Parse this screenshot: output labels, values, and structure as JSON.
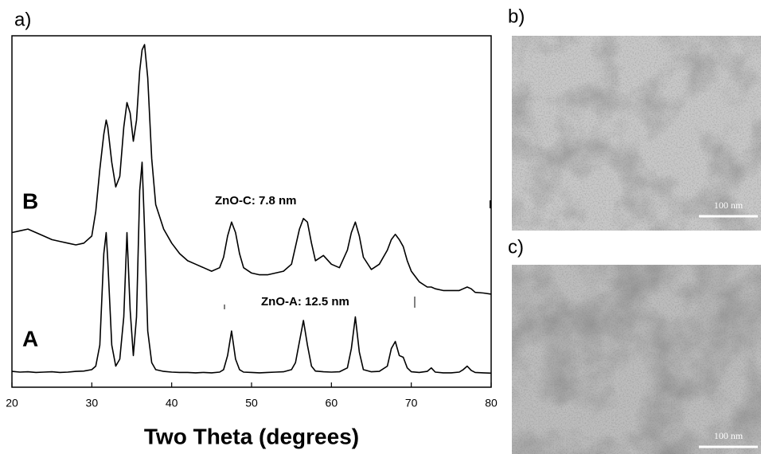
{
  "chart_data": {
    "type": "line",
    "panel_label": "a)",
    "xlabel": "Two Theta (degrees)",
    "x": [
      20,
      21,
      22,
      23,
      24,
      25,
      26,
      27,
      28,
      29,
      30,
      30.5,
      31,
      31.5,
      31.8,
      32,
      32.5,
      33,
      33.5,
      34,
      34.4,
      34.8,
      35.2,
      35.6,
      36,
      36.3,
      36.6,
      37,
      37.5,
      38,
      39,
      40,
      41,
      42,
      43,
      44,
      45,
      46,
      46.5,
      47,
      47.5,
      48,
      48.5,
      49,
      50,
      51,
      52,
      53,
      54,
      55,
      55.5,
      56,
      56.5,
      57,
      57.5,
      58,
      59,
      60,
      61,
      62,
      62.5,
      63,
      63.5,
      64,
      65,
      66,
      67,
      67.5,
      68,
      68.5,
      69,
      69.5,
      70,
      71,
      72,
      72.5,
      73,
      74,
      75,
      76,
      76.5,
      77,
      77.5,
      78,
      79,
      80
    ],
    "series": [
      {
        "name": "B",
        "color": "#000000",
        "annotation": "ZnO-C: 7.8 nm",
        "values": [
          44,
          44.5,
          45,
          44,
          43,
          42,
          41.5,
          41,
          40.5,
          41,
          43,
          50,
          62,
          72,
          76,
          74,
          64,
          57,
          60,
          74,
          81,
          78,
          70,
          76,
          90,
          96,
          97.5,
          88,
          65,
          52,
          45,
          41,
          38,
          36,
          35,
          34,
          33,
          34,
          37,
          43,
          47,
          44,
          38,
          34,
          32.5,
          32,
          32,
          32.5,
          33,
          35,
          40,
          45,
          48,
          47,
          41,
          36,
          37.5,
          35,
          34,
          39,
          44,
          47,
          43,
          37,
          33.5,
          35,
          39,
          42,
          43.5,
          42,
          40,
          36,
          33,
          30,
          28.5,
          28.5,
          28,
          27.5,
          27.5,
          27.5,
          28,
          28.5,
          28,
          27,
          26.8,
          26.5
        ]
      },
      {
        "name": "A",
        "color": "#000000",
        "annotation": "ZnO-A: 12.5 nm",
        "values": [
          4.5,
          4.3,
          4.4,
          4.2,
          4.3,
          4.4,
          4.2,
          4.3,
          4.5,
          4.6,
          5,
          6,
          12,
          38,
          44,
          36,
          12,
          6,
          8,
          20,
          44,
          22,
          9,
          20,
          56,
          64,
          45,
          16,
          7,
          5,
          4.5,
          4.3,
          4.2,
          4.2,
          4.1,
          4.2,
          4.1,
          4.3,
          5,
          9,
          16,
          8,
          5,
          4.3,
          4.2,
          4.1,
          4.2,
          4.3,
          4.4,
          5,
          7,
          13,
          19,
          12,
          6,
          4.6,
          4.4,
          4.3,
          4.4,
          5.5,
          11,
          20,
          10,
          5,
          4.4,
          4.5,
          6,
          11,
          13,
          9,
          8.5,
          5.5,
          4.4,
          4.2,
          4.5,
          5.5,
          4.3,
          4.1,
          4.1,
          4.3,
          5,
          6,
          4.8,
          4.2,
          4.1,
          4.0
        ]
      }
    ],
    "xlim": [
      20,
      80
    ],
    "xticks": [
      20,
      30,
      40,
      50,
      60,
      70,
      80
    ],
    "ylim": [
      0,
      100
    ],
    "legend": false
  },
  "images": [
    {
      "panel_label": "b)",
      "scale_bar": "100 nm"
    },
    {
      "panel_label": "c)",
      "scale_bar": "100 nm"
    }
  ]
}
